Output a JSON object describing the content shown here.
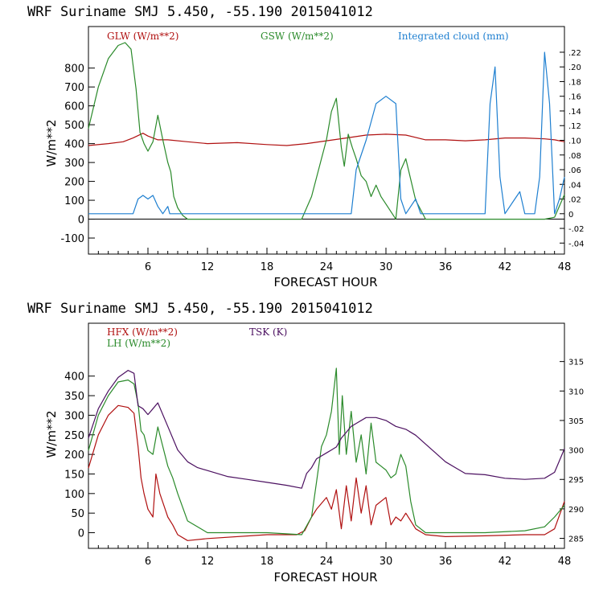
{
  "chart_data": [
    {
      "type": "line",
      "title": "WRF   Suriname SMJ   5.450, -55.190  2015041012",
      "xlabel": "FORECAST HOUR",
      "ylabel": "W/m**2",
      "x_ticks": [
        6,
        12,
        18,
        24,
        30,
        36,
        42,
        48
      ],
      "y_ticks": [
        -100,
        0,
        100,
        200,
        300,
        400,
        500,
        600,
        700,
        800
      ],
      "right_ticks": [
        ".22",
        ".20",
        ".18",
        ".16",
        ".14",
        ".12",
        ".10",
        ".08",
        ".06",
        ".04",
        ".02",
        "0",
        "-.02",
        "-.04"
      ],
      "xlim": [
        0,
        48
      ],
      "ylim": [
        -185,
        1020
      ],
      "y2lim": [
        -0.055,
        0.255
      ],
      "grid": false,
      "series": [
        {
          "name": "GLW (W/m**2)",
          "color": "#b01010",
          "axis": "left",
          "x": [
            0,
            2,
            3.5,
            4.5,
            5.5,
            6,
            7,
            8,
            10,
            12,
            15,
            18,
            20,
            22,
            24,
            26,
            28,
            30,
            32,
            34,
            36,
            38,
            40,
            42,
            44,
            46,
            47,
            48
          ],
          "y": [
            390,
            400,
            410,
            430,
            455,
            440,
            420,
            420,
            410,
            400,
            405,
            395,
            390,
            400,
            415,
            430,
            445,
            450,
            445,
            420,
            420,
            415,
            420,
            430,
            430,
            425,
            420,
            410
          ]
        },
        {
          "name": "GSW (W/m**2)",
          "color": "#2a8a2a",
          "axis": "left",
          "x": [
            0,
            1,
            2,
            3,
            3.7,
            4.3,
            4.8,
            5.2,
            5.6,
            6,
            6.5,
            7,
            7.5,
            8,
            8.3,
            8.6,
            9,
            9.5,
            10,
            12,
            21.5,
            22.5,
            23.5,
            24,
            24.5,
            25,
            25.5,
            25.8,
            26.2,
            26.6,
            27,
            27.5,
            28,
            28.5,
            29,
            29.5,
            30,
            31,
            31.5,
            32,
            33,
            34,
            36,
            40,
            46,
            47,
            48
          ],
          "y": [
            480,
            700,
            850,
            920,
            935,
            900,
            690,
            460,
            400,
            360,
            410,
            550,
            420,
            300,
            250,
            120,
            60,
            20,
            0,
            0,
            0,
            120,
            320,
            420,
            570,
            640,
            380,
            280,
            450,
            380,
            320,
            230,
            200,
            120,
            180,
            120,
            80,
            0,
            260,
            320,
            100,
            0,
            0,
            0,
            0,
            10,
            130
          ]
        }
      ],
      "cloud_series": {
        "name": "Integrated cloud (mm)",
        "color": "#1e7fd0",
        "axis": "right",
        "x": [
          0,
          4.5,
          5,
          5.5,
          6,
          6.5,
          7,
          7.5,
          8,
          8.2,
          8.4,
          26.5,
          27,
          28,
          29,
          30,
          31,
          31.5,
          32,
          33,
          33.5,
          34,
          40,
          40.5,
          41,
          41.5,
          42,
          43,
          43.5,
          44,
          44.5,
          45,
          45.5,
          46,
          46.5,
          47,
          47.5,
          48
        ],
        "y": [
          0,
          0,
          0.02,
          0.025,
          0.02,
          0.025,
          0.01,
          0.0,
          0.01,
          0.0,
          0.0,
          0.0,
          0.06,
          0.1,
          0.15,
          0.16,
          0.15,
          0.02,
          0.0,
          0.02,
          0.0,
          0.0,
          0.0,
          0.15,
          0.2,
          0.05,
          0.0,
          0.02,
          0.03,
          0.0,
          0.0,
          0.0,
          0.05,
          0.22,
          0.15,
          0.0,
          0.02,
          0.05
        ]
      }
    },
    {
      "type": "line",
      "title": "WRF   Suriname SMJ   5.450, -55.190  2015041012",
      "xlabel": "FORECAST HOUR",
      "ylabel": "W/m**2",
      "x_ticks": [
        6,
        12,
        18,
        24,
        30,
        36,
        42,
        48
      ],
      "y_ticks": [
        0,
        50,
        100,
        150,
        200,
        250,
        300,
        350,
        400
      ],
      "right_ticks": [
        285,
        290,
        295,
        300,
        305,
        310,
        315
      ],
      "xlim": [
        0,
        48
      ],
      "ylim": [
        -40,
        535
      ],
      "y2lim": [
        283.3,
        321.5
      ],
      "grid": false,
      "series": [
        {
          "name": "HFX (W/m**2)",
          "color": "#b01010",
          "axis": "left",
          "x": [
            0,
            1,
            2,
            3,
            4,
            4.6,
            5,
            5.3,
            5.6,
            6,
            6.5,
            6.8,
            7.2,
            8,
            8.5,
            9,
            10,
            12,
            18,
            21,
            21.8,
            22.5,
            23,
            24,
            24.5,
            25,
            25.5,
            26,
            26.5,
            27,
            27.5,
            28,
            28.5,
            29,
            30,
            30.5,
            31,
            31.5,
            32,
            33,
            34,
            36,
            40,
            44,
            46,
            47,
            48
          ],
          "y": [
            165,
            250,
            300,
            325,
            320,
            305,
            220,
            140,
            100,
            60,
            40,
            150,
            100,
            40,
            20,
            -5,
            -20,
            -15,
            -5,
            -5,
            5,
            40,
            60,
            90,
            60,
            110,
            10,
            120,
            30,
            140,
            50,
            120,
            20,
            70,
            90,
            20,
            40,
            30,
            50,
            10,
            -5,
            -10,
            -8,
            -5,
            -5,
            10,
            80
          ]
        },
        {
          "name": "LH  (W/m**2)",
          "color": "#2a8a2a",
          "axis": "left",
          "x": [
            0,
            1,
            2,
            3,
            4,
            4.6,
            5,
            5.3,
            5.6,
            6,
            6.5,
            7,
            7.5,
            8,
            8.5,
            9,
            10,
            12,
            18,
            21.5,
            22.5,
            23,
            23.5,
            24,
            24.5,
            25,
            25.3,
            25.6,
            26,
            26.5,
            27,
            27.5,
            28,
            28.5,
            29,
            29.5,
            30,
            30.5,
            31,
            31.5,
            32,
            32.5,
            33,
            34,
            40,
            44,
            46,
            47,
            48
          ],
          "y": [
            210,
            300,
            350,
            385,
            390,
            380,
            330,
            260,
            250,
            210,
            200,
            270,
            220,
            170,
            140,
            100,
            30,
            0,
            0,
            -5,
            40,
            130,
            220,
            250,
            310,
            420,
            200,
            350,
            200,
            310,
            180,
            250,
            150,
            280,
            180,
            170,
            160,
            140,
            150,
            200,
            170,
            80,
            20,
            0,
            0,
            5,
            15,
            40,
            70
          ]
        },
        {
          "name": "TSK (K)",
          "color": "#4b1060",
          "axis": "right",
          "x": [
            0,
            1,
            2,
            3,
            4,
            4.6,
            5,
            5.5,
            6,
            6.5,
            7,
            8,
            9,
            10,
            11,
            12,
            14,
            16,
            18,
            20,
            21.5,
            22,
            22.5,
            23,
            24,
            24.5,
            25,
            25.5,
            26,
            26.5,
            27,
            28,
            29,
            30,
            31,
            32,
            33,
            34,
            35,
            36,
            37,
            38,
            40,
            42,
            44,
            46,
            47,
            48
          ],
          "y": [
            302,
            307,
            310,
            312.3,
            313.5,
            313,
            307.5,
            307,
            306,
            307,
            308,
            304,
            300,
            298,
            297,
            296.5,
            295.5,
            295,
            294.5,
            294,
            293.5,
            296,
            297,
            298.5,
            299.5,
            300,
            300.5,
            302,
            303,
            304,
            304.5,
            305.5,
            305.5,
            305,
            304,
            303.5,
            302.5,
            301,
            299.5,
            298,
            297,
            296,
            295.8,
            295.2,
            295,
            295.2,
            296.2,
            300.2
          ]
        }
      ]
    }
  ]
}
